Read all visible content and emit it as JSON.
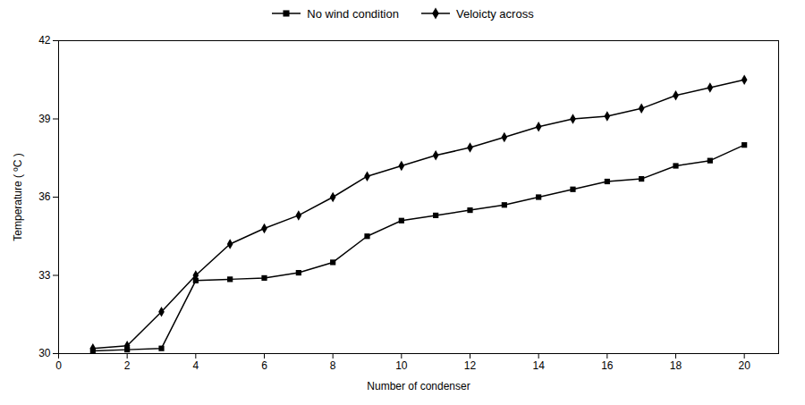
{
  "chart_data": {
    "type": "line",
    "x": [
      1,
      2,
      3,
      4,
      5,
      6,
      7,
      8,
      9,
      10,
      11,
      12,
      13,
      14,
      15,
      16,
      17,
      18,
      19,
      20
    ],
    "series": [
      {
        "name": "No wind condition",
        "color": "black",
        "marker": "square",
        "values": [
          30.1,
          30.15,
          30.2,
          32.8,
          32.85,
          32.9,
          33.1,
          33.5,
          34.5,
          35.1,
          35.3,
          35.5,
          35.7,
          36.0,
          36.3,
          36.6,
          36.7,
          37.2,
          37.4,
          38.0
        ]
      },
      {
        "name": "Veloicty across",
        "color": "black",
        "marker": "diamond",
        "values": [
          30.2,
          30.3,
          31.6,
          33.0,
          34.2,
          34.8,
          35.3,
          36.0,
          36.8,
          37.2,
          37.6,
          37.9,
          38.3,
          38.7,
          39.0,
          39.1,
          39.4,
          39.9,
          40.2,
          40.5
        ]
      }
    ],
    "xlabel": "Number of condenser",
    "ylabel": "Temperature ( ºC )",
    "xlim": [
      0,
      21
    ],
    "ylim": [
      30,
      42
    ],
    "xticks": [
      0,
      2,
      4,
      6,
      8,
      10,
      12,
      14,
      16,
      18,
      20
    ],
    "yticks": [
      30,
      33,
      36,
      39,
      42
    ],
    "grid": false,
    "legend": "right"
  }
}
